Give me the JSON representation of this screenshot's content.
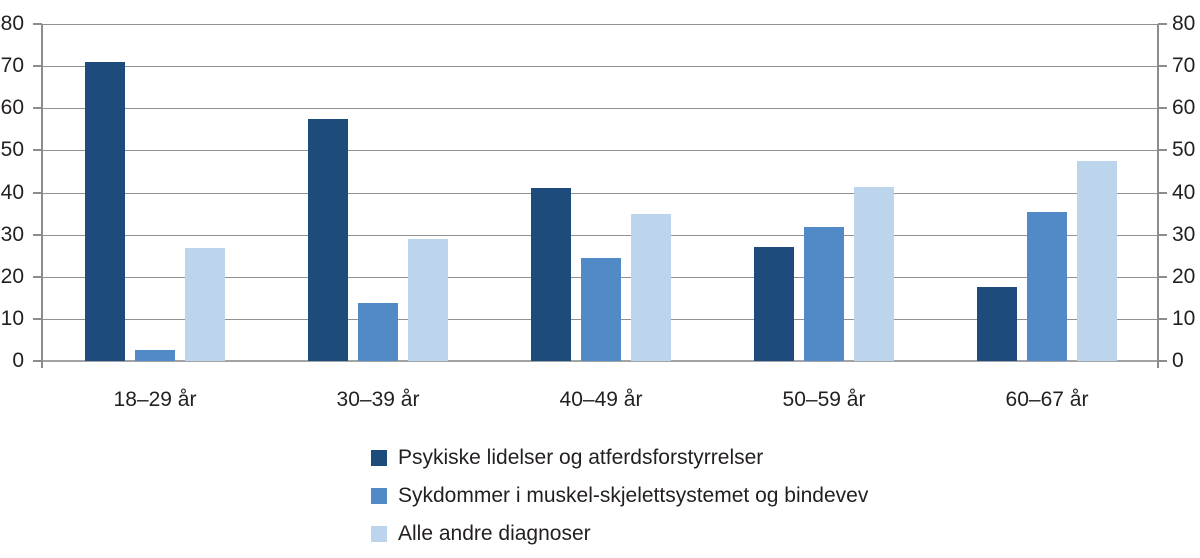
{
  "chart_data": {
    "type": "bar",
    "categories": [
      "18–29 år",
      "30–39 år",
      "40–49 år",
      "50–59 år",
      "60–67 år"
    ],
    "series": [
      {
        "name": "Psykiske lidelser og atferdsforstyrrelser",
        "color": "#1c4b7c",
        "values": [
          71,
          57.5,
          41,
          27,
          17.5
        ]
      },
      {
        "name": "Sykdommer i muskel-skjelettsystemet og bindevev",
        "color": "#5289c7",
        "values": [
          2.6,
          13.8,
          24.5,
          31.8,
          35.3
        ]
      },
      {
        "name": "Alle andre diagnoser",
        "color": "#bdd5ec",
        "values": [
          26.9,
          29,
          35,
          41.3,
          47.5
        ]
      }
    ],
    "title": "",
    "xlabel": "",
    "ylabel": "",
    "ylim": [
      0,
      80
    ],
    "yticks": [
      0,
      10,
      20,
      30,
      40,
      50,
      60,
      70,
      80
    ],
    "grid": true,
    "dual_y_axis": true,
    "legend_position": "bottom-left"
  },
  "colors": {
    "gridline": "#919191",
    "axis": "#8c8c8c",
    "text": "#231f20",
    "background": "#ffffff"
  }
}
